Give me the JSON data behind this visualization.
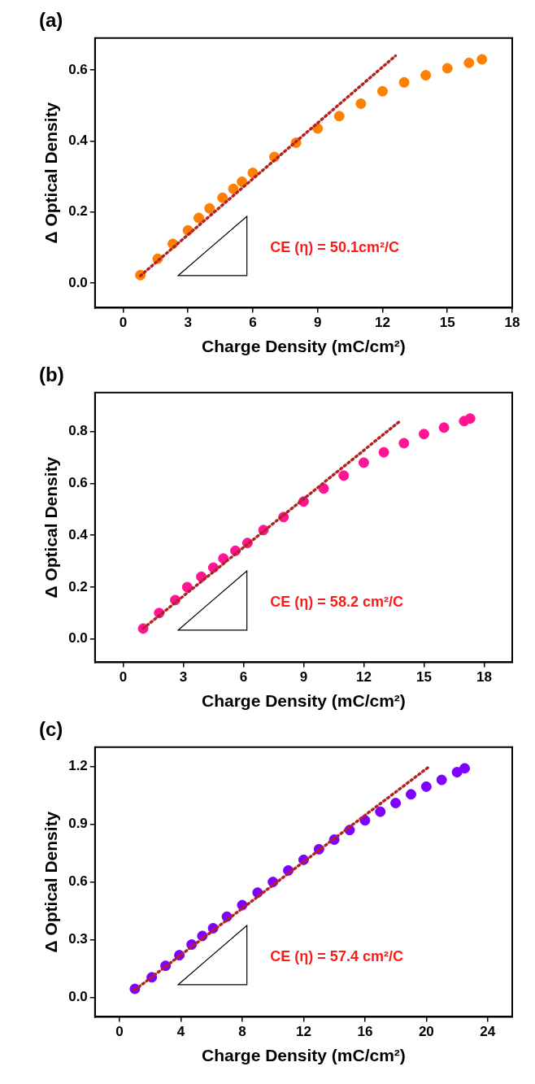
{
  "chart_data": [
    {
      "type": "scatter",
      "title": "(a)",
      "xlabel": "Charge Density (mC/cm²)",
      "ylabel": "Δ Optical Density",
      "xlim": [
        -1.3,
        18
      ],
      "xticks": [
        0,
        3,
        6,
        9,
        12,
        15,
        18
      ],
      "ylim": [
        -0.07,
        0.69
      ],
      "yticks": [
        {
          "value": 0,
          "label": "0.0"
        },
        0.2,
        0.4,
        0.6
      ],
      "grid": false,
      "legend": false,
      "annotations": [
        "CE (η) = 50.1cm²/C"
      ],
      "series": [
        {
          "type": "scatter",
          "color": "#ff8000",
          "marker": "circle",
          "x": [
            0.8,
            1.6,
            2.3,
            3.0,
            3.5,
            4.0,
            4.6,
            5.1,
            5.5,
            6,
            7,
            8,
            9,
            10,
            11,
            12,
            13,
            14,
            15,
            16,
            16.6
          ],
          "values": [
            0.022,
            0.068,
            0.11,
            0.148,
            0.183,
            0.21,
            0.24,
            0.265,
            0.285,
            0.31,
            0.355,
            0.395,
            0.435,
            0.47,
            0.505,
            0.54,
            0.565,
            0.585,
            0.605,
            0.62,
            0.63
          ]
        },
        {
          "type": "line",
          "color": "#b22222",
          "marker": "none",
          "line_style": "dotted",
          "x": [
            0.8,
            12.6
          ],
          "values": [
            0.02,
            0.64
          ]
        }
      ]
    },
    {
      "type": "scatter",
      "title": "(b)",
      "xlabel": "Charge Density (mC/cm²)",
      "ylabel": "Δ Optical Density",
      "xlim": [
        -1.4,
        19.4
      ],
      "xticks": [
        0,
        3,
        6,
        9,
        12,
        15,
        18
      ],
      "ylim": [
        -0.09,
        0.95
      ],
      "yticks": [
        {
          "value": 0,
          "label": "0.0"
        },
        0.2,
        0.4,
        0.6,
        0.8
      ],
      "grid": false,
      "legend": false,
      "annotations": [
        "CE (η) = 58.2 cm²/C"
      ],
      "series": [
        {
          "type": "scatter",
          "color": "#ff1493",
          "marker": "circle",
          "x": [
            1.0,
            1.8,
            2.6,
            3.2,
            3.9,
            4.5,
            5.0,
            5.6,
            6.2,
            7,
            8,
            9,
            10,
            11,
            12,
            13,
            14,
            15,
            16,
            17,
            17.3
          ],
          "values": [
            0.04,
            0.1,
            0.15,
            0.2,
            0.24,
            0.275,
            0.31,
            0.34,
            0.37,
            0.42,
            0.47,
            0.53,
            0.58,
            0.63,
            0.68,
            0.72,
            0.755,
            0.79,
            0.815,
            0.84,
            0.85
          ]
        },
        {
          "type": "line",
          "color": "#b22222",
          "marker": "none",
          "line_style": "dotted",
          "x": [
            1.0,
            13.8
          ],
          "values": [
            0.04,
            0.84
          ]
        }
      ]
    },
    {
      "type": "scatter",
      "title": "(c)",
      "xlabel": "Charge Density (mC/cm²)",
      "ylabel": "Δ Optical Density",
      "xlim": [
        -1.6,
        25.6
      ],
      "xticks": [
        0,
        4,
        8,
        12,
        16,
        20,
        24
      ],
      "ylim": [
        -0.1,
        1.3
      ],
      "yticks": [
        {
          "value": 0,
          "label": "0.0"
        },
        {
          "value": 0.3,
          "label": "0.3"
        },
        {
          "value": 0.6,
          "label": "0.6"
        },
        {
          "value": 0.9,
          "label": "0.9"
        },
        {
          "value": 1.2,
          "label": "1.2"
        }
      ],
      "grid": false,
      "legend": false,
      "annotations": [
        "CE (η) = 57.4 cm²/C"
      ],
      "series": [
        {
          "type": "scatter",
          "color": "#8000ff",
          "marker": "circle",
          "x": [
            1.0,
            2.1,
            3.0,
            3.9,
            4.7,
            5.4,
            6.1,
            7,
            8,
            9,
            10,
            11,
            12,
            13,
            14,
            15,
            16,
            17,
            18,
            19,
            20,
            21,
            22,
            22.5
          ],
          "values": [
            0.045,
            0.105,
            0.165,
            0.22,
            0.275,
            0.32,
            0.36,
            0.42,
            0.48,
            0.545,
            0.6,
            0.66,
            0.715,
            0.77,
            0.82,
            0.87,
            0.92,
            0.965,
            1.01,
            1.055,
            1.095,
            1.13,
            1.17,
            1.19
          ]
        },
        {
          "type": "line",
          "color": "#b22222",
          "marker": "none",
          "line_style": "dotted",
          "x": [
            1.0,
            20.2
          ],
          "values": [
            0.04,
            1.2
          ]
        }
      ]
    }
  ]
}
